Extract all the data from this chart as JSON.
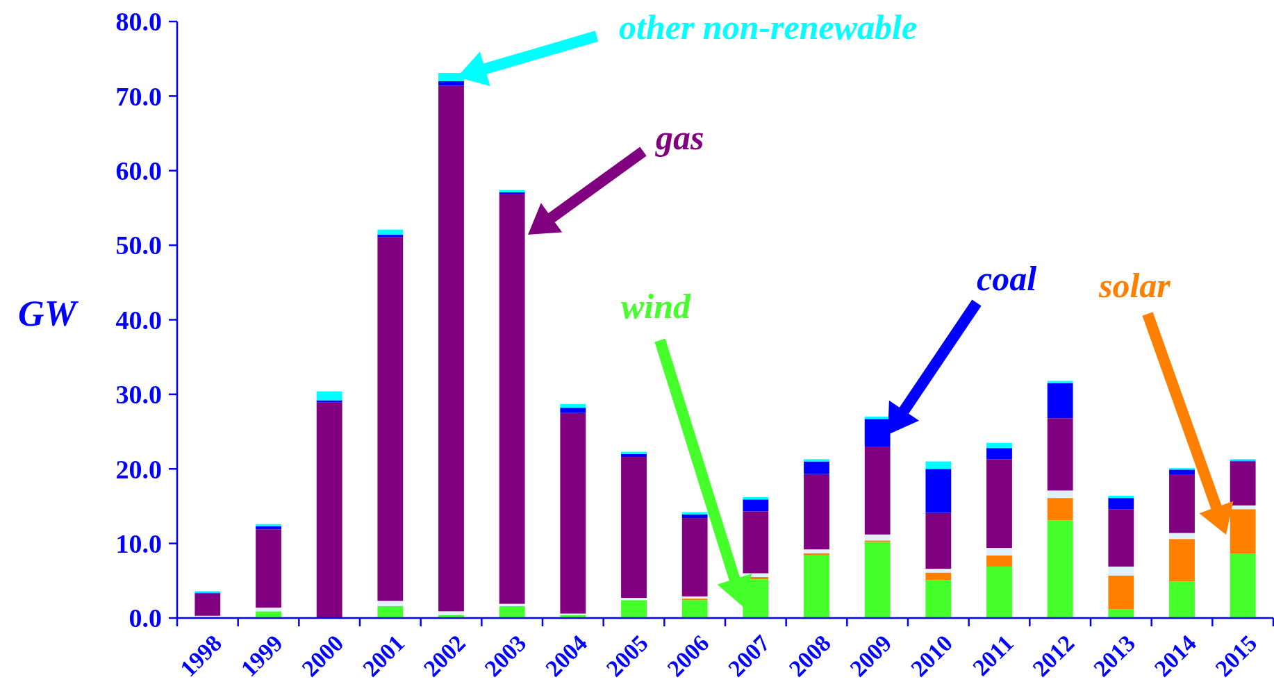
{
  "chart_data": {
    "type": "bar",
    "stacked": true,
    "ylabel": "GW",
    "categories": [
      "1998",
      "1999",
      "2000",
      "2001",
      "2002",
      "2003",
      "2004",
      "2005",
      "2006",
      "2007",
      "2008",
      "2009",
      "2010",
      "2011",
      "2012",
      "2013",
      "2014",
      "2015"
    ],
    "ylim": [
      0,
      80
    ],
    "yticks": [
      {
        "value": 0,
        "label": "0.0"
      },
      {
        "value": 10,
        "label": "10.0"
      },
      {
        "value": 20,
        "label": "20.0"
      },
      {
        "value": 30,
        "label": "30.0"
      },
      {
        "value": 40,
        "label": "40.0"
      },
      {
        "value": 50,
        "label": "50.0"
      },
      {
        "value": 60,
        "label": "60.0"
      },
      {
        "value": 70,
        "label": "70.0"
      },
      {
        "value": 80,
        "label": "80.0"
      }
    ],
    "grid": false,
    "series": [
      {
        "name": "wind",
        "color": "#44ff2a",
        "values": [
          0,
          0.9,
          0,
          1.6,
          0.4,
          1.6,
          0.4,
          2.4,
          2.4,
          5.2,
          8.4,
          10.2,
          5.1,
          6.9,
          13.1,
          1.2,
          4.9,
          8.6
        ]
      },
      {
        "name": "solar",
        "color": "#ff8000",
        "values": [
          0,
          0,
          0,
          0,
          0,
          0,
          0,
          0,
          0.2,
          0.3,
          0.3,
          0.2,
          1.0,
          1.5,
          3.0,
          4.5,
          5.7,
          6.0
        ]
      },
      {
        "color": "#e0f0fc",
        "values": [
          0.3,
          0.5,
          0,
          0.7,
          0.5,
          0.3,
          0.2,
          0.3,
          0.3,
          0.5,
          0.5,
          0.8,
          0.5,
          1.0,
          1.0,
          1.2,
          0.8,
          0.5
        ]
      },
      {
        "name": "gas",
        "color": "#800080",
        "values": [
          3.0,
          10.5,
          28.9,
          48.8,
          70.5,
          55.0,
          26.9,
          18.9,
          10.5,
          8.3,
          10.1,
          11.8,
          7.5,
          11.9,
          9.7,
          7.7,
          7.8,
          5.9
        ]
      },
      {
        "name": "coal",
        "color": "#0000ff",
        "values": [
          0.1,
          0.4,
          0.3,
          0.3,
          0.6,
          0.2,
          0.7,
          0.4,
          0.5,
          1.6,
          1.7,
          3.7,
          5.9,
          1.5,
          4.7,
          1.5,
          0.7,
          0.1
        ]
      },
      {
        "name": "other non-renewable",
        "color": "#00ffff",
        "values": [
          0.2,
          0.3,
          1.2,
          0.7,
          1.1,
          0.3,
          0.5,
          0.3,
          0.3,
          0.3,
          0.3,
          0.3,
          1.0,
          0.7,
          0.3,
          0.3,
          0.2,
          0.2
        ]
      }
    ]
  }
}
